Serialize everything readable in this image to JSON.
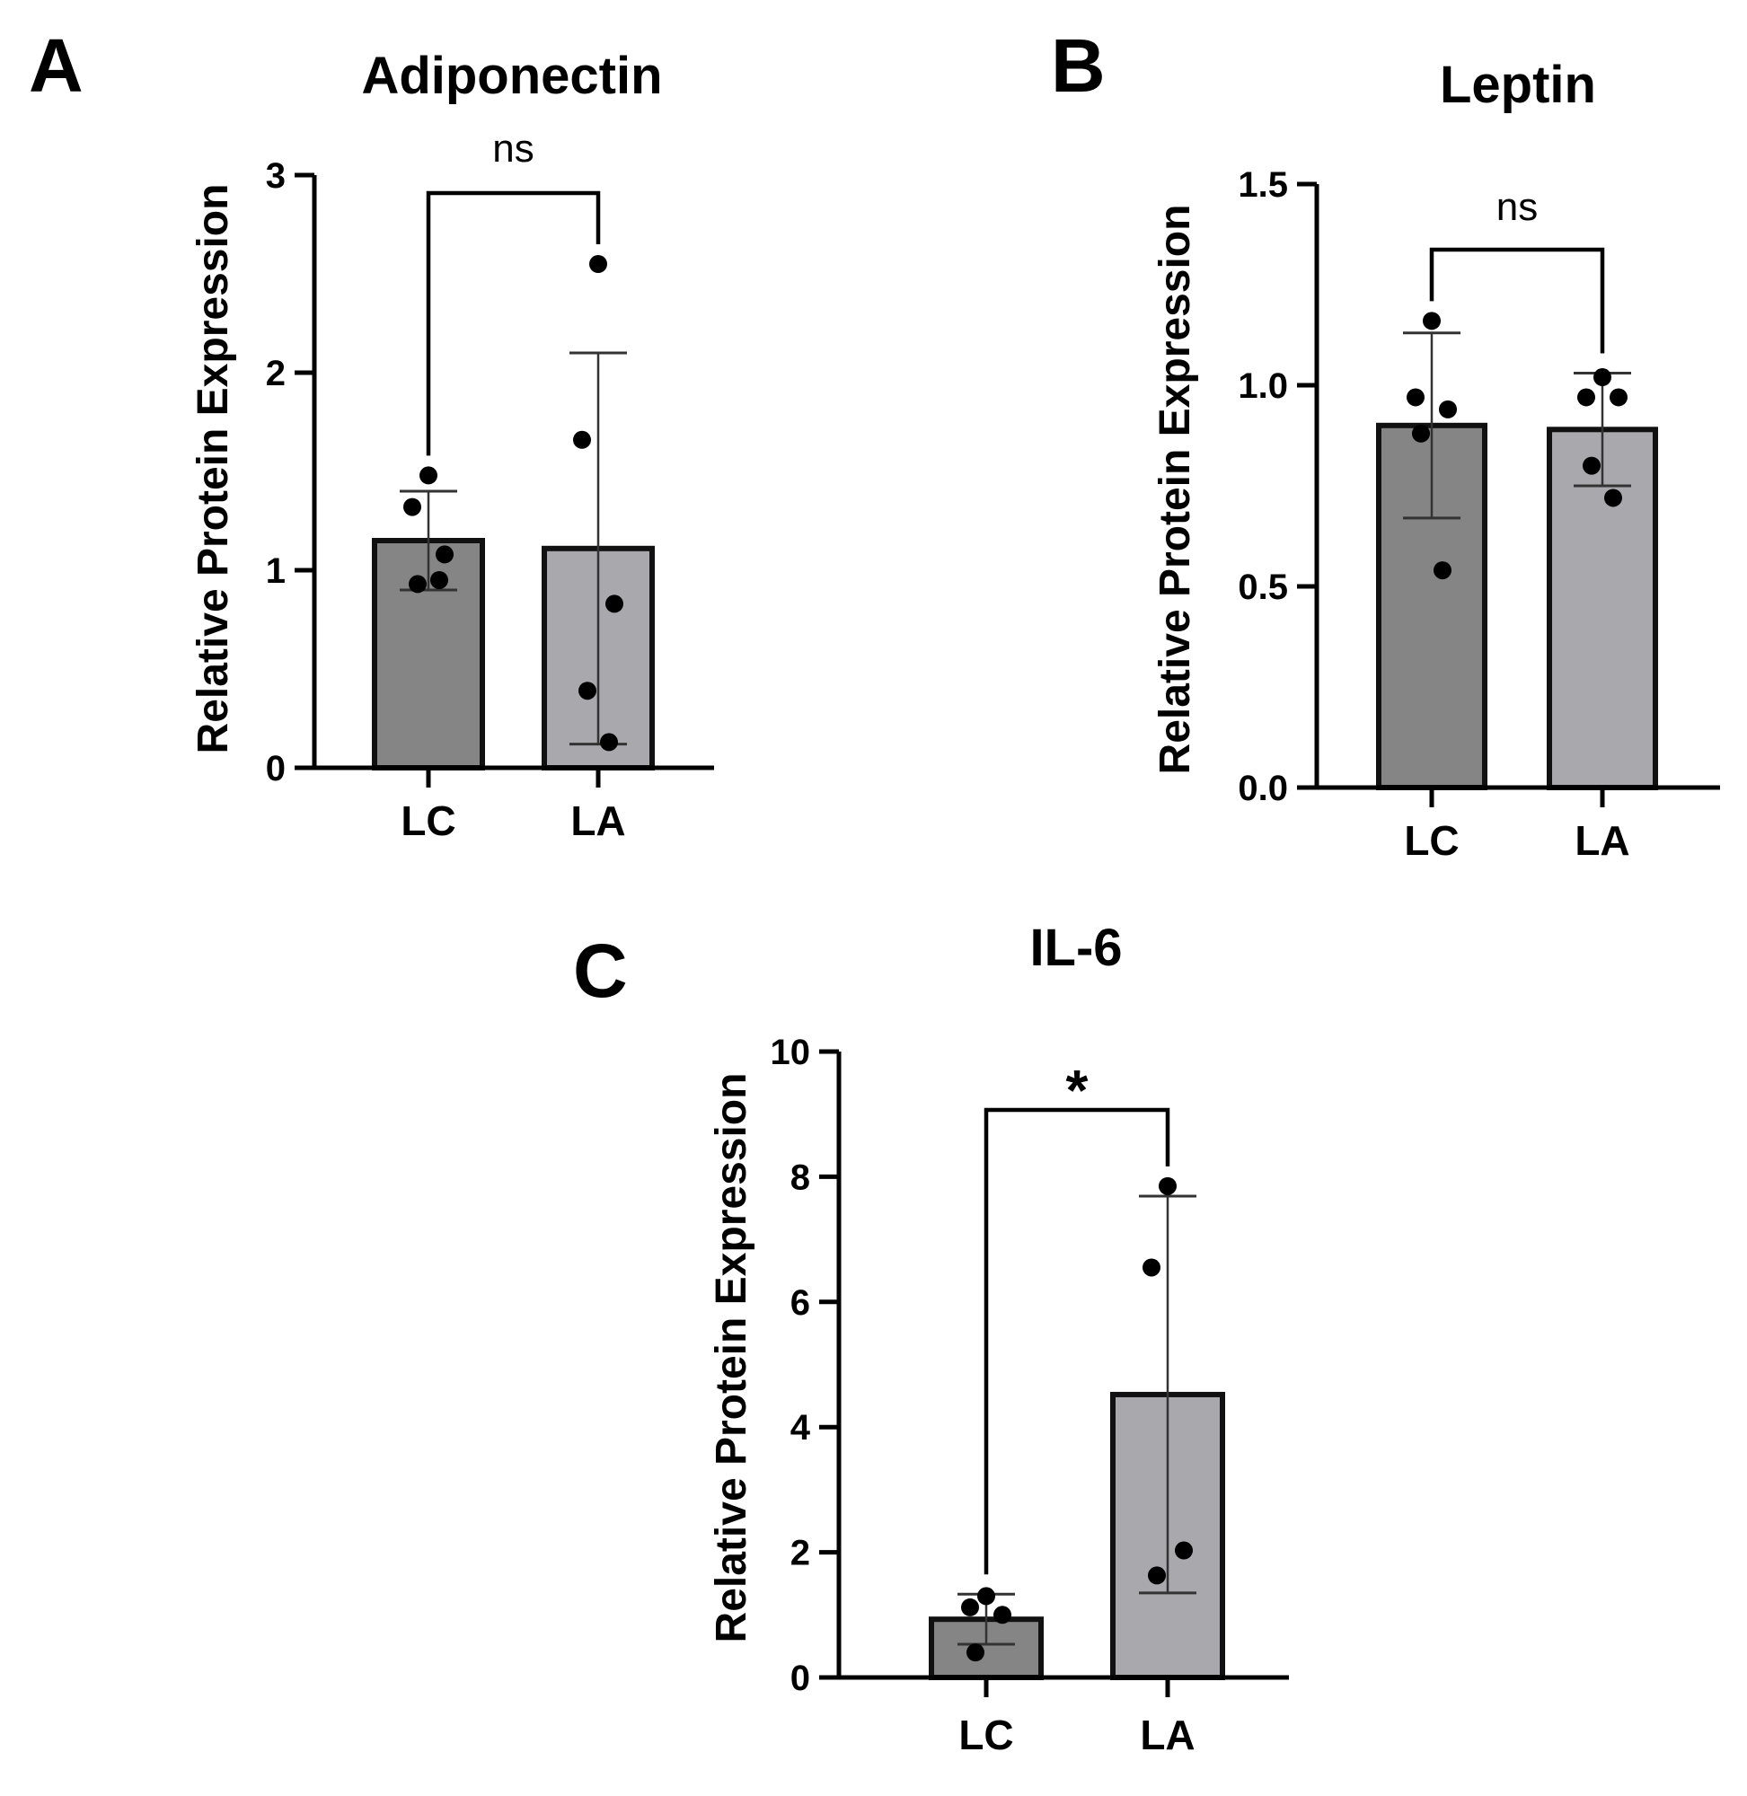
{
  "chart_data": [
    {
      "panel": "A",
      "type": "bar",
      "title": "Adiponectin",
      "ylabel": "Relative Protein  Expression",
      "xlabel": "",
      "ylim": [
        0,
        3
      ],
      "yticks": [
        0,
        1,
        2,
        3
      ],
      "ytick_labels": [
        "0",
        "1",
        "2",
        "3"
      ],
      "categories": [
        "LC",
        "LA"
      ],
      "values": [
        1.15,
        1.11
      ],
      "errors": [
        0.25,
        0.99
      ],
      "points": [
        [
          1.48,
          1.32,
          1.08,
          0.93,
          0.95
        ],
        [
          2.55,
          1.66,
          0.83,
          0.39,
          0.13
        ]
      ],
      "bar_colors": [
        "#858585",
        "#a8a8ad"
      ],
      "significance": "ns"
    },
    {
      "panel": "B",
      "type": "bar",
      "title": "Leptin",
      "ylabel": "Relative Protein  Expression",
      "xlabel": "",
      "ylim": [
        0,
        1.5
      ],
      "yticks": [
        0,
        0.5,
        1.0,
        1.5
      ],
      "ytick_labels": [
        "0.0",
        "0.5",
        "1.0",
        "1.5"
      ],
      "categories": [
        "LC",
        "LA"
      ],
      "values": [
        0.9,
        0.89
      ],
      "errors": [
        0.23,
        0.14
      ],
      "points": [
        [
          1.16,
          0.97,
          0.94,
          0.88,
          0.54
        ],
        [
          1.02,
          0.97,
          0.97,
          0.8,
          0.72
        ]
      ],
      "bar_colors": [
        "#858585",
        "#a8a8ad"
      ],
      "significance": "ns"
    },
    {
      "panel": "C",
      "type": "bar",
      "title": "IL-6",
      "ylabel": "Relative Protein  Expression",
      "xlabel": "",
      "ylim": [
        0,
        10
      ],
      "yticks": [
        0,
        2,
        4,
        6,
        8,
        10
      ],
      "ytick_labels": [
        "0",
        "2",
        "4",
        "6",
        "8",
        "10"
      ],
      "categories": [
        "LC",
        "LA"
      ],
      "values": [
        0.93,
        4.52
      ],
      "errors": [
        0.4,
        3.17
      ],
      "points": [
        [
          1.3,
          1.12,
          1.0,
          0.4
        ],
        [
          7.85,
          6.55,
          2.03,
          1.63
        ]
      ],
      "bar_colors": [
        "#858585",
        "#a8a8ad"
      ],
      "significance": "*"
    }
  ]
}
